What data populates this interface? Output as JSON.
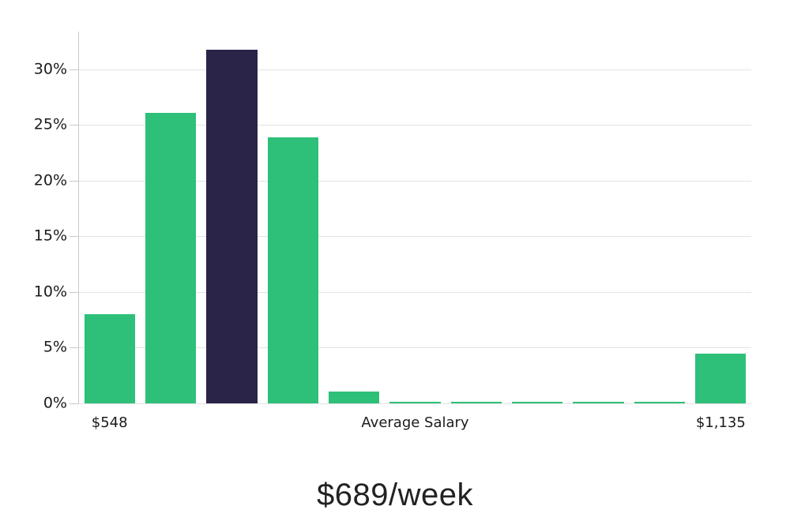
{
  "chart_data": {
    "type": "bar",
    "title": "$689/week",
    "values": [
      8.0,
      26.1,
      31.8,
      23.9,
      1.1,
      0.15,
      0.15,
      0.15,
      0.15,
      0.15,
      4.5
    ],
    "highlight_index": 2,
    "colors": {
      "bar": "#2ec078",
      "highlight": "#2a2449",
      "gridline": "#e3e3e3",
      "axis": "#c9c9c9",
      "text": "#1b1b1b"
    },
    "x_axis": {
      "labels": [
        {
          "text": "$548",
          "bar_index": 0
        },
        {
          "text": "Average Salary",
          "bar_index": 5
        },
        {
          "text": "$1,135",
          "bar_index": 10
        }
      ]
    },
    "y_axis": {
      "ticks": [
        0,
        5,
        10,
        15,
        20,
        25,
        30
      ],
      "tick_suffix": "%",
      "max": 33.4
    },
    "ylim": [
      0,
      33.4
    ],
    "grid": true,
    "legend": "none"
  }
}
